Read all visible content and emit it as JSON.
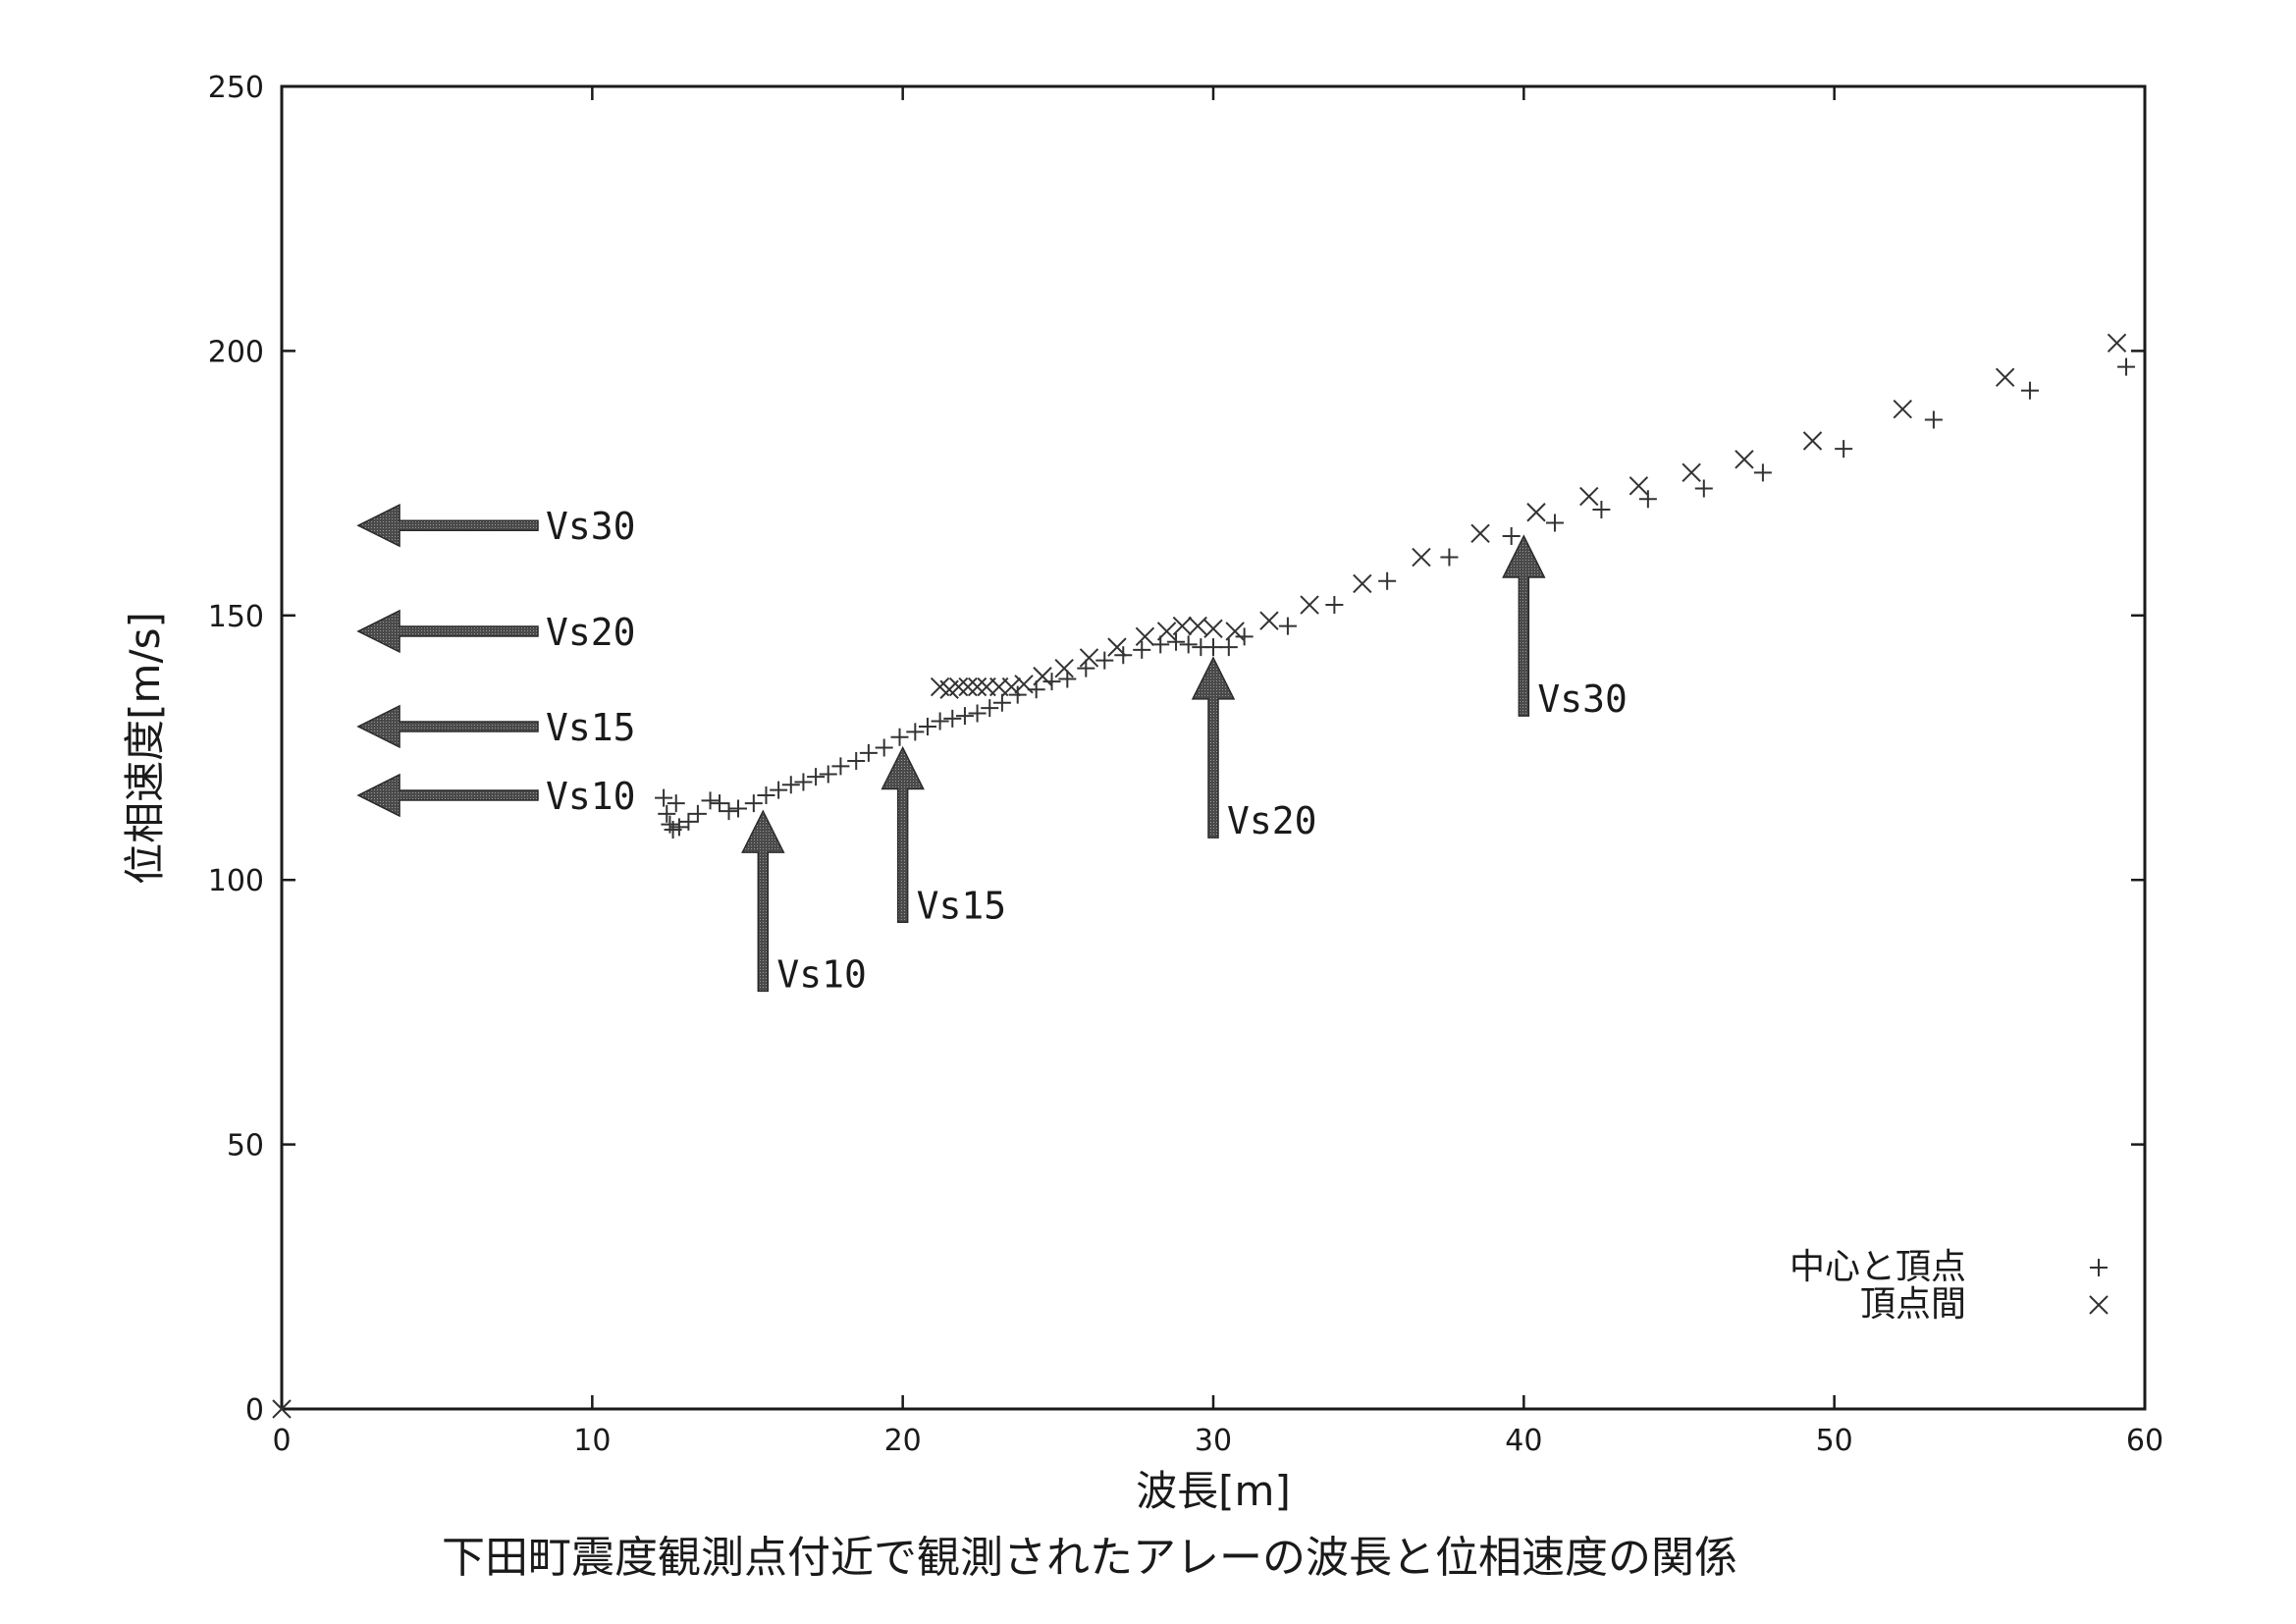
{
  "chart_data": {
    "type": "scatter",
    "caption": "下田町震度観測点付近で観測されたアレーの波長と位相速度の関係",
    "xlabel": "波長[m]",
    "ylabel": "位相速度[m/s]",
    "xlim": [
      0,
      60
    ],
    "ylim": [
      0,
      250
    ],
    "xticks": [
      0,
      10,
      20,
      30,
      40,
      50,
      60
    ],
    "yticks": [
      0,
      50,
      100,
      150,
      200,
      250
    ],
    "grid": false,
    "legend_position": "bottom-right",
    "series": [
      {
        "name": "中心と頂点",
        "marker": "plus",
        "color": "#333333",
        "points": [
          [
            12.3,
            115.5
          ],
          [
            12.4,
            112.5
          ],
          [
            12.5,
            110.5
          ],
          [
            12.6,
            109.5
          ],
          [
            12.7,
            114.5
          ],
          [
            12.8,
            110
          ],
          [
            13.1,
            111
          ],
          [
            13.4,
            112.5
          ],
          [
            13.8,
            115
          ],
          [
            14.1,
            114.5
          ],
          [
            14.4,
            113
          ],
          [
            14.7,
            113.5
          ],
          [
            15.2,
            114.5
          ],
          [
            15.6,
            116
          ],
          [
            16.0,
            117
          ],
          [
            16.4,
            118
          ],
          [
            16.8,
            118.5
          ],
          [
            17.2,
            119.5
          ],
          [
            17.6,
            120
          ],
          [
            18.0,
            121.5
          ],
          [
            18.5,
            122.5
          ],
          [
            18.9,
            124
          ],
          [
            19.4,
            125
          ],
          [
            19.9,
            127
          ],
          [
            20.4,
            128
          ],
          [
            20.8,
            129
          ],
          [
            21.2,
            130
          ],
          [
            21.6,
            130.5
          ],
          [
            22.0,
            131
          ],
          [
            22.4,
            131.5
          ],
          [
            22.8,
            132.5
          ],
          [
            23.2,
            133.5
          ],
          [
            23.7,
            135
          ],
          [
            24.3,
            136
          ],
          [
            24.8,
            137.5
          ],
          [
            25.3,
            138
          ],
          [
            25.9,
            140
          ],
          [
            26.5,
            141.5
          ],
          [
            27.1,
            142.5
          ],
          [
            27.7,
            143.5
          ],
          [
            28.3,
            144.5
          ],
          [
            28.8,
            145
          ],
          [
            29.2,
            144.5
          ],
          [
            29.6,
            144
          ],
          [
            30.0,
            144
          ],
          [
            30.5,
            144
          ],
          [
            31.0,
            146
          ],
          [
            32.4,
            148
          ],
          [
            33.9,
            152
          ],
          [
            35.6,
            156.5
          ],
          [
            37.6,
            161
          ],
          [
            39.6,
            165
          ],
          [
            41.0,
            167.5
          ],
          [
            42.5,
            170
          ],
          [
            44.0,
            172
          ],
          [
            45.8,
            174
          ],
          [
            47.7,
            177
          ],
          [
            50.3,
            181.5
          ],
          [
            53.2,
            187
          ],
          [
            56.3,
            192.5
          ],
          [
            59.4,
            197
          ]
        ]
      },
      {
        "name": "頂点間",
        "marker": "cross",
        "color": "#333333",
        "points": [
          [
            0,
            0
          ],
          [
            21.2,
            136.5
          ],
          [
            21.5,
            136
          ],
          [
            21.8,
            136.5
          ],
          [
            22.1,
            136.5
          ],
          [
            22.4,
            136.5
          ],
          [
            22.7,
            136.5
          ],
          [
            23.1,
            136.5
          ],
          [
            23.5,
            136.5
          ],
          [
            23.9,
            137
          ],
          [
            24.5,
            138.5
          ],
          [
            25.2,
            140
          ],
          [
            26.0,
            142
          ],
          [
            26.9,
            144
          ],
          [
            27.8,
            146
          ],
          [
            28.5,
            147
          ],
          [
            29.0,
            148
          ],
          [
            29.5,
            148
          ],
          [
            30.0,
            147.5
          ],
          [
            30.7,
            147
          ],
          [
            31.8,
            149
          ],
          [
            33.1,
            152
          ],
          [
            34.8,
            156
          ],
          [
            36.7,
            161
          ],
          [
            38.6,
            165.5
          ],
          [
            40.4,
            169.5
          ],
          [
            42.1,
            172.5
          ],
          [
            43.7,
            174.5
          ],
          [
            45.4,
            177
          ],
          [
            47.1,
            179.5
          ],
          [
            49.3,
            183
          ],
          [
            52.2,
            189
          ],
          [
            55.5,
            195
          ],
          [
            59.1,
            201.5
          ]
        ]
      }
    ],
    "annotations": {
      "horizontal_arrows": [
        {
          "label": "Vs30",
          "y": 167
        },
        {
          "label": "Vs20",
          "y": 147
        },
        {
          "label": "Vs15",
          "y": 129
        },
        {
          "label": "Vs10",
          "y": 116
        }
      ],
      "vertical_arrows": [
        {
          "label": "Vs10",
          "x": 15.5,
          "y_from": 79,
          "y_to": 113
        },
        {
          "label": "Vs15",
          "x": 20.0,
          "y_from": 92,
          "y_to": 125
        },
        {
          "label": "Vs20",
          "x": 30.0,
          "y_from": 108,
          "y_to": 142
        },
        {
          "label": "Vs30",
          "x": 40.0,
          "y_from": 131,
          "y_to": 165
        }
      ]
    }
  }
}
